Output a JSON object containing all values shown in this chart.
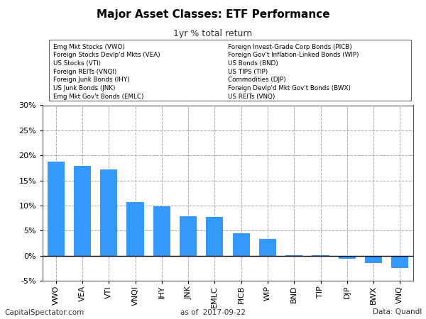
{
  "title": "Major Asset Classes: ETF Performance",
  "subtitle": "1yr % total return",
  "categories": [
    "VWO",
    "VEA",
    "VTI",
    "VNQI",
    "IHY",
    "JNK",
    "EMLC",
    "PICB",
    "WIP",
    "BND",
    "TIP",
    "DJP",
    "BWX",
    "VNQ"
  ],
  "values": [
    18.8,
    17.9,
    17.2,
    10.7,
    9.85,
    7.8,
    7.75,
    4.5,
    3.4,
    0.07,
    0.12,
    -0.55,
    -1.5,
    -2.4
  ],
  "bar_color": "#3399ff",
  "background_color": "#ffffff",
  "plot_bg_color": "#ffffff",
  "ylim": [
    -5,
    30
  ],
  "yticks": [
    -5,
    0,
    5,
    10,
    15,
    20,
    25,
    30
  ],
  "legend_left": [
    "Emg Mkt Stocks (VWO)",
    "Foreign Stocks Devlp'd Mkts (VEA)",
    "US Stocks (VTI)",
    "Foreign REITs (VNQI)",
    "Foreign Junk Bonds (IHY)",
    "US Junk Bonds (JNK)",
    "Emg Mkt Gov't Bonds (EMLC)"
  ],
  "legend_right": [
    "Foreign Invest-Grade Corp Bonds (PICB)",
    "Foreign Gov't Inflation-Linked Bonds (WIP)",
    "US Bonds (BND)",
    "US TIPS (TIP)",
    "Commodities (DJP)",
    "Foreign Devlp'd Mkt Gov't Bonds (BWX)",
    "US REITs (VNQ)"
  ],
  "footer_left": "CapitalSpectator.com",
  "footer_center": "as of  2017-09-22",
  "footer_right": "Data: Quandl",
  "grid_color": "#aaaaaa",
  "zero_line_color": "#000000"
}
